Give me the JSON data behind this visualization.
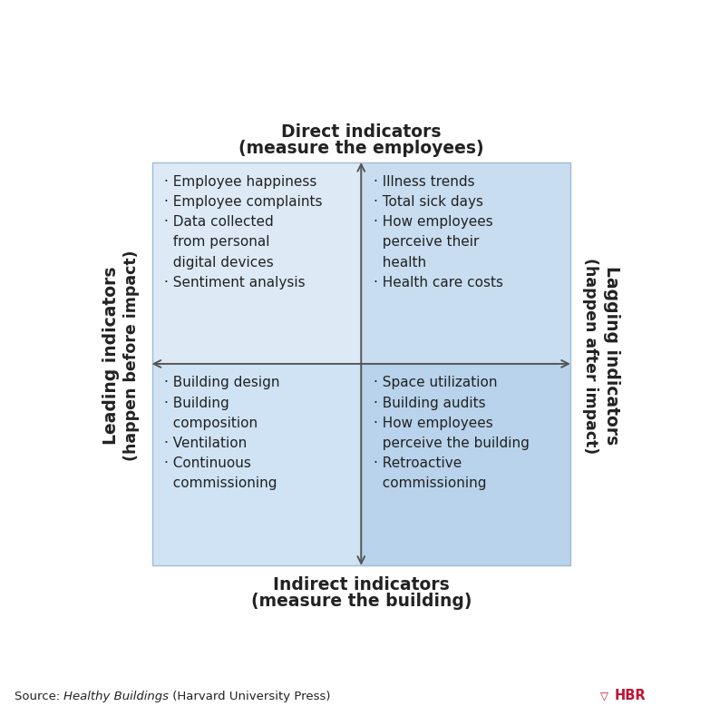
{
  "title_top1": "Direct indicators",
  "title_top2": "(measure the employees)",
  "title_bottom1": "Indirect indicators",
  "title_bottom2": "(measure the building)",
  "title_left1": "Leading indicators",
  "title_left2": "(happen before impact)",
  "title_right1": "Lagging indicators",
  "title_right2": "(happen after impact)",
  "quadrant_UL": "· Employee happiness\n· Employee complaints\n· Data collected\n  from personal\n  digital devices\n· Sentiment analysis",
  "quadrant_UR": "· Illness trends\n· Total sick days\n· How employees\n  perceive their\n  health\n· Health care costs",
  "quadrant_LL": "· Building design\n· Building\n  composition\n· Ventilation\n· Continuous\n  commissioning",
  "quadrant_LR": "· Space utilization\n· Building audits\n· How employees\n  perceive the building\n· Retroactive\n  commissioning",
  "source_plain": "Source: ",
  "source_italic": "Healthy Buildings",
  "source_end": " (Harvard University Press)",
  "hbr_text": "HBR",
  "color_UL": "#ddeaf6",
  "color_UR": "#c8ddf0",
  "color_LL": "#cfe3f4",
  "color_LR": "#b8d3eb",
  "border_color": "#a0bcd4",
  "arrow_color": "#555555",
  "text_color": "#222222",
  "hbr_color": "#c41230",
  "fig_bg": "#ffffff",
  "font_size_q": 11.0,
  "font_size_title": 13.5,
  "font_size_source": 9.5
}
